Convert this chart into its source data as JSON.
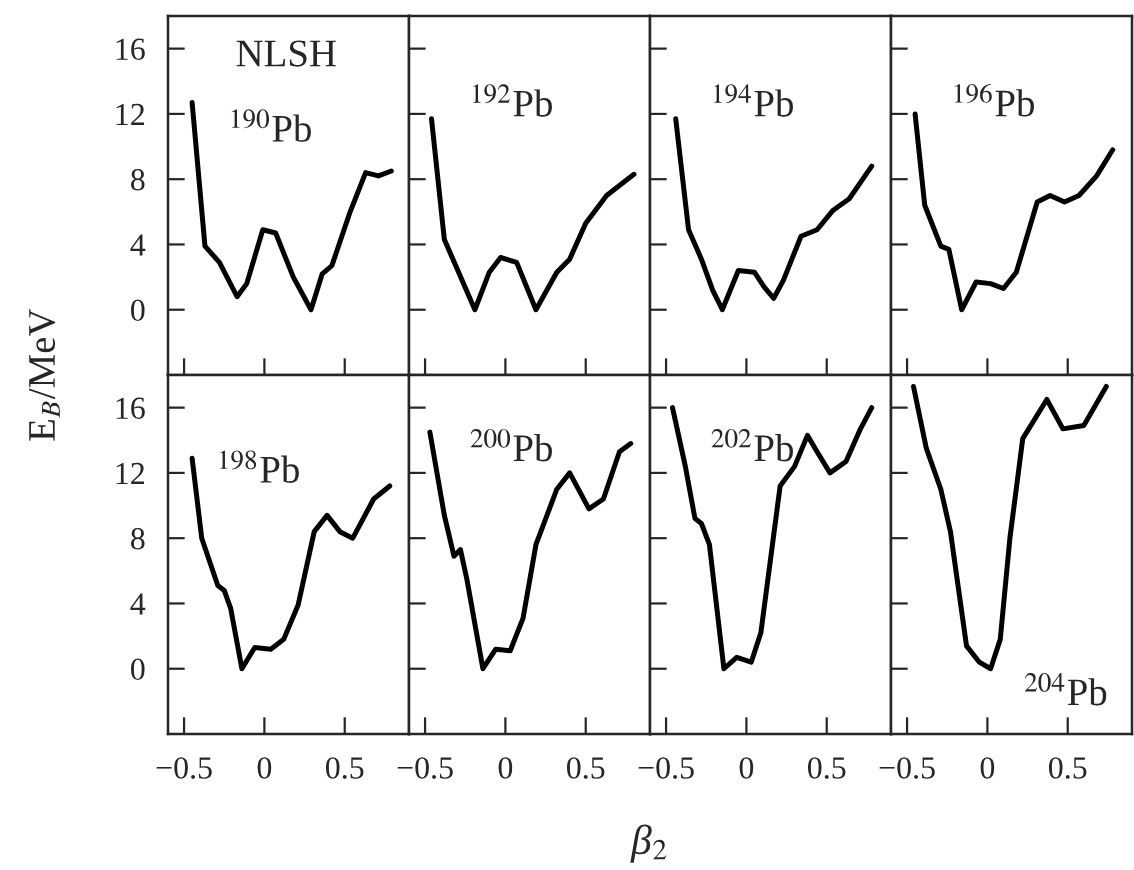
{
  "chart_data": [
    {
      "type": "line",
      "ylabel": "E$_{B}$/MeV",
      "annotations": [
        "NLSH",
        "$^{190}$Pb"
      ],
      "xlim": [
        -0.6,
        0.9
      ],
      "ylim": [
        -4,
        18
      ],
      "xticks": [
        {
          "value": -0.5,
          "label": null
        },
        {
          "value": 0,
          "label": null
        },
        {
          "value": 0.5,
          "label": null
        }
      ],
      "yticks": [
        0,
        4,
        8,
        12,
        16
      ],
      "tick_labels": "y",
      "line_style": "solid",
      "series": [
        {
          "color": "#000000",
          "x": [
            -0.45,
            -0.37,
            -0.28,
            -0.17,
            -0.11,
            -0.01,
            0.07,
            0.18,
            0.29,
            0.36,
            0.42,
            0.53,
            0.63,
            0.71,
            0.79
          ],
          "values": [
            12.7,
            3.9,
            2.9,
            0.8,
            1.6,
            4.9,
            4.7,
            2.0,
            0,
            2.2,
            2.7,
            5.9,
            8.4,
            8.2,
            8.5
          ]
        }
      ]
    },
    {
      "type": "line",
      "annotations": [
        "$^{192}$Pb"
      ],
      "xlim": [
        -0.6,
        0.9
      ],
      "ylim": [
        -4,
        18
      ],
      "xticks": [
        {
          "value": -0.5,
          "label": null
        },
        {
          "value": 0,
          "label": null
        },
        {
          "value": 0.5,
          "label": null
        }
      ],
      "yticks": [
        0,
        4,
        8,
        12,
        16
      ],
      "tick_labels": false,
      "line_style": "solid",
      "series": [
        {
          "color": "#000000",
          "x": [
            -0.46,
            -0.38,
            -0.3,
            -0.19,
            -0.1,
            -0.03,
            0.07,
            0.19,
            0.32,
            0.4,
            0.5,
            0.63,
            0.8
          ],
          "values": [
            11.7,
            4.3,
            2.5,
            0,
            2.3,
            3.2,
            2.9,
            0,
            2.3,
            3.1,
            5.3,
            7.0,
            8.3
          ]
        }
      ]
    },
    {
      "type": "line",
      "annotations": [
        "$^{194}$Pb"
      ],
      "xlim": [
        -0.6,
        0.9
      ],
      "ylim": [
        -4,
        18
      ],
      "xticks": [
        {
          "value": -0.5,
          "label": null
        },
        {
          "value": 0,
          "label": null
        },
        {
          "value": 0.5,
          "label": null
        }
      ],
      "yticks": [
        0,
        4,
        8,
        12,
        16
      ],
      "tick_labels": false,
      "line_style": "solid",
      "series": [
        {
          "color": "#000000",
          "x": [
            -0.44,
            -0.36,
            -0.28,
            -0.21,
            -0.15,
            -0.05,
            0.05,
            0.11,
            0.17,
            0.23,
            0.34,
            0.44,
            0.54,
            0.64,
            0.78
          ],
          "values": [
            11.7,
            4.9,
            3.1,
            1.2,
            0,
            2.4,
            2.3,
            1.4,
            0.7,
            1.8,
            4.5,
            4.9,
            6.1,
            6.8,
            8.8
          ]
        }
      ]
    },
    {
      "type": "line",
      "annotations": [
        "$^{196}$Pb"
      ],
      "xlim": [
        -0.6,
        0.9
      ],
      "ylim": [
        -4,
        18
      ],
      "xticks": [
        {
          "value": -0.5,
          "label": null
        },
        {
          "value": 0,
          "label": null
        },
        {
          "value": 0.5,
          "label": null
        }
      ],
      "yticks": [
        0,
        4,
        8,
        12,
        16
      ],
      "tick_labels": false,
      "line_style": "solid",
      "series": [
        {
          "color": "#000000",
          "x": [
            -0.45,
            -0.39,
            -0.29,
            -0.24,
            -0.16,
            -0.07,
            0.02,
            0.1,
            0.18,
            0.31,
            0.39,
            0.48,
            0.57,
            0.68,
            0.78
          ],
          "values": [
            12.0,
            6.4,
            3.9,
            3.7,
            0,
            1.7,
            1.6,
            1.3,
            2.3,
            6.6,
            7.0,
            6.6,
            7.0,
            8.2,
            9.8
          ]
        }
      ]
    },
    {
      "type": "line",
      "annotations": [
        "$^{198}$Pb"
      ],
      "xlim": [
        -0.6,
        0.9
      ],
      "ylim": [
        -4,
        18
      ],
      "xticks": [
        {
          "value": -0.5,
          "label": "−0.5"
        },
        0,
        0.5
      ],
      "yticks": [
        0,
        4,
        8,
        12,
        16
      ],
      "line_style": "solid",
      "series": [
        {
          "color": "#000000",
          "x": [
            -0.45,
            -0.39,
            -0.29,
            -0.25,
            -0.21,
            -0.14,
            -0.06,
            0.04,
            0.12,
            0.21,
            0.31,
            0.39,
            0.47,
            0.55,
            0.68,
            0.78
          ],
          "values": [
            12.9,
            8.0,
            5.1,
            4.8,
            3.7,
            0,
            1.3,
            1.2,
            1.8,
            3.9,
            8.4,
            9.4,
            8.4,
            8.0,
            10.4,
            11.2
          ]
        }
      ]
    },
    {
      "type": "line",
      "xlabel": "β$_{2}$",
      "annotations": [
        "$^{200}$Pb"
      ],
      "xlim": [
        -0.6,
        0.9
      ],
      "ylim": [
        -4,
        18
      ],
      "xticks": [
        {
          "value": -0.5,
          "label": "−0.5"
        },
        0,
        0.5
      ],
      "yticks": [
        0,
        4,
        8,
        12,
        16
      ],
      "tick_labels": "x",
      "line_style": "solid",
      "series": [
        {
          "color": "#000000",
          "x": [
            -0.47,
            -0.38,
            -0.32,
            -0.28,
            -0.24,
            -0.14,
            -0.06,
            0.03,
            0.11,
            0.19,
            0.32,
            0.4,
            0.52,
            0.61,
            0.71,
            0.78
          ],
          "values": [
            14.5,
            9.4,
            6.9,
            7.3,
            5.5,
            0,
            1.2,
            1.1,
            3.1,
            7.6,
            11.0,
            12.0,
            9.8,
            10.4,
            13.3,
            13.8
          ]
        }
      ]
    },
    {
      "type": "line",
      "annotations": [
        "$^{202}$Pb"
      ],
      "xlim": [
        -0.6,
        0.9
      ],
      "ylim": [
        -4,
        18
      ],
      "xticks": [
        {
          "value": -0.5,
          "label": "−0.5"
        },
        0,
        0.5
      ],
      "yticks": [
        0,
        4,
        8,
        12,
        16
      ],
      "tick_labels": "x",
      "line_style": "solid",
      "series": [
        {
          "color": "#000000",
          "x": [
            -0.46,
            -0.38,
            -0.32,
            -0.28,
            -0.23,
            -0.14,
            -0.06,
            0.03,
            0.09,
            0.21,
            0.3,
            0.38,
            0.44,
            0.52,
            0.62,
            0.71,
            0.78
          ],
          "values": [
            16.0,
            12.4,
            9.2,
            8.9,
            7.6,
            0,
            0.7,
            0.4,
            2.2,
            11.2,
            12.4,
            14.3,
            13.3,
            12.0,
            12.7,
            14.7,
            16.0
          ]
        }
      ]
    },
    {
      "type": "line",
      "annotations": [
        "$^{204}$Pb"
      ],
      "xlim": [
        -0.6,
        0.9
      ],
      "ylim": [
        -4,
        18
      ],
      "xticks": [
        {
          "value": -0.5,
          "label": "−0.5"
        },
        0,
        0.5
      ],
      "yticks": [
        0,
        4,
        8,
        12,
        16
      ],
      "tick_labels": "x",
      "line_style": "solid",
      "series": [
        {
          "color": "#000000",
          "x": [
            -0.46,
            -0.38,
            -0.29,
            -0.23,
            -0.13,
            -0.05,
            0.02,
            0.08,
            0.14,
            0.22,
            0.37,
            0.47,
            0.6,
            0.74
          ],
          "values": [
            17.3,
            13.5,
            11.0,
            8.4,
            1.4,
            0.4,
            0,
            1.8,
            8.0,
            14.1,
            16.5,
            14.7,
            14.9,
            17.3
          ]
        }
      ]
    }
  ]
}
